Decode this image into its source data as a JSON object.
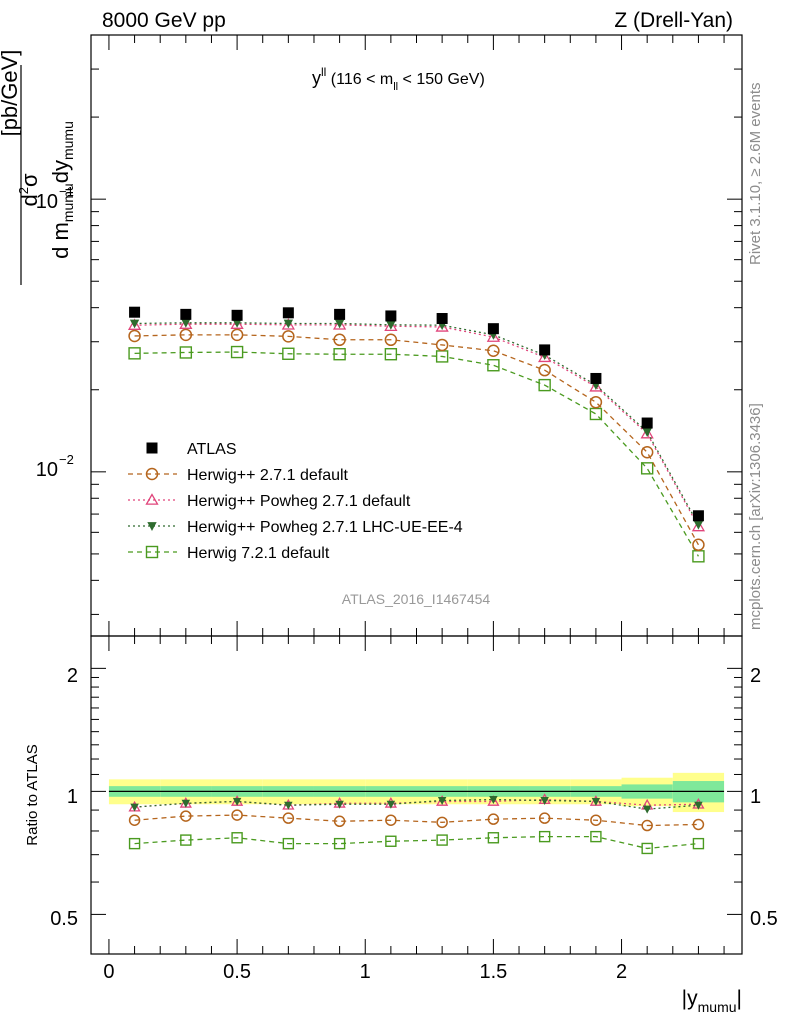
{
  "header": {
    "left": "8000 GeV pp",
    "right": "Z (Drell-Yan)"
  },
  "side_labels": {
    "rivet": "Rivet 3.1.10, ≥ 2.6M events",
    "mcplots": "mcplots.cern.ch [arXiv:1306.3436]"
  },
  "chart_data": [
    {
      "type": "scatter",
      "panel": "main",
      "title": "y^ll (116 < m_ll < 150 GeV)",
      "title_parts": {
        "base": "y",
        "sup": "ll",
        "mid": " (116 < m",
        "sub": "ll",
        "tail": " < 150 GeV)"
      },
      "ylabel": "d²σ / d m_mumu dy_mumu [pb/GeV]",
      "yscale": "log",
      "ylim": [
        0.0025,
        0.4
      ],
      "xlim": [
        -0.07,
        2.47
      ],
      "y_tick_labels": {
        "major_1": "10",
        "major_1_exp": "−1",
        "major_2": "10",
        "major_2_exp": "−2"
      },
      "watermark": "ATLAS_2016_I1467454",
      "x": [
        0.1,
        0.3,
        0.5,
        0.7,
        0.9,
        1.1,
        1.3,
        1.5,
        1.7,
        1.9,
        2.1,
        2.3
      ],
      "series": [
        {
          "name": "ATLAS",
          "color": "#000000",
          "marker": "filled-square",
          "line": "none",
          "values": [
            0.0385,
            0.0378,
            0.0375,
            0.0383,
            0.0378,
            0.0373,
            0.0365,
            0.0335,
            0.028,
            0.022,
            0.0151,
            0.0069
          ]
        },
        {
          "name": "Herwig++ 2.7.1 default",
          "color": "#b5651d",
          "marker": "open-circle",
          "line": "dashed",
          "values": [
            0.0315,
            0.0318,
            0.0318,
            0.0314,
            0.0305,
            0.0305,
            0.0292,
            0.0278,
            0.0236,
            0.018,
            0.0118,
            0.0054
          ]
        },
        {
          "name": "Herwig++ Powheg 2.7.1 default",
          "color": "#e0457b",
          "marker": "open-triangle",
          "line": "dotted",
          "values": [
            0.0345,
            0.0348,
            0.0348,
            0.0346,
            0.0346,
            0.0342,
            0.034,
            0.0312,
            0.0263,
            0.0205,
            0.0138,
            0.0063
          ]
        },
        {
          "name": "Herwig++ Powheg 2.7.1 LHC-UE-EE-4",
          "color": "#2e6b2e",
          "marker": "filled-triangle-down",
          "line": "dotted",
          "values": [
            0.035,
            0.0352,
            0.0352,
            0.035,
            0.035,
            0.0346,
            0.0345,
            0.0318,
            0.0268,
            0.0208,
            0.014,
            0.0064
          ]
        },
        {
          "name": "Herwig 7.2.1 default",
          "color": "#4a9a1f",
          "marker": "open-square",
          "line": "dashed",
          "values": [
            0.0272,
            0.0274,
            0.0275,
            0.0271,
            0.027,
            0.027,
            0.0265,
            0.0246,
            0.0208,
            0.0163,
            0.0103,
            0.0049
          ]
        }
      ]
    },
    {
      "type": "scatter",
      "panel": "ratio",
      "ylabel": "Ratio to ATLAS",
      "xlabel": "|y_mumu|",
      "xlabel_parts": {
        "base": "|y",
        "sub": "mumu",
        "tail": "|"
      },
      "ylim": [
        0.4,
        2.4
      ],
      "yscale": "log",
      "y_ticks": [
        0.5,
        1,
        2
      ],
      "y_tick_labels": [
        "0.5",
        "1",
        "2"
      ],
      "x_ticks": [
        0,
        0.5,
        1,
        1.5,
        2
      ],
      "x_tick_labels": [
        "0",
        "0.5",
        "1",
        "1.5",
        "2"
      ],
      "band_edges": [
        0,
        0.2,
        0.4,
        0.6,
        0.8,
        1.0,
        1.2,
        1.4,
        1.6,
        1.8,
        2.0,
        2.2,
        2.4
      ],
      "band_total": [
        0.07,
        0.07,
        0.07,
        0.07,
        0.07,
        0.07,
        0.07,
        0.07,
        0.07,
        0.07,
        0.08,
        0.11
      ],
      "band_stat": [
        0.03,
        0.03,
        0.03,
        0.03,
        0.03,
        0.03,
        0.03,
        0.03,
        0.03,
        0.03,
        0.04,
        0.06
      ],
      "series": [
        {
          "name": "Herwig++ 2.7.1 default",
          "values": [
            0.85,
            0.87,
            0.875,
            0.86,
            0.845,
            0.85,
            0.84,
            0.855,
            0.86,
            0.85,
            0.825,
            0.83
          ]
        },
        {
          "name": "Herwig++ Powheg 2.7.1 default",
          "values": [
            0.915,
            0.935,
            0.945,
            0.925,
            0.935,
            0.935,
            0.945,
            0.945,
            0.955,
            0.945,
            0.925,
            0.93
          ]
        },
        {
          "name": "Herwig++ Powheg 2.7.1 LHC-UE-EE-4",
          "values": [
            0.915,
            0.935,
            0.945,
            0.925,
            0.93,
            0.93,
            0.95,
            0.955,
            0.95,
            0.945,
            0.905,
            0.925
          ]
        },
        {
          "name": "Herwig 7.2.1 default",
          "values": [
            0.745,
            0.76,
            0.77,
            0.745,
            0.745,
            0.755,
            0.76,
            0.77,
            0.775,
            0.775,
            0.725,
            0.745
          ]
        }
      ]
    }
  ]
}
